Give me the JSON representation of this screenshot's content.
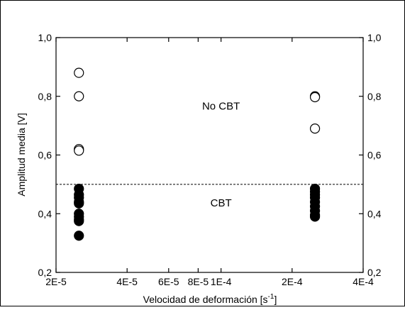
{
  "chart_data": {
    "type": "scatter",
    "xscale": "log",
    "xlim": [
      2e-05,
      0.0004
    ],
    "ylim": [
      0.2,
      1.0
    ],
    "xlabel_main": "Velocidad de deformación [s",
    "xlabel_sup": "-1",
    "xlabel_tail": "]",
    "ylabel": "Amplitud media [V]",
    "x_ticks": [
      {
        "value": 2e-05,
        "label": "2E-5"
      },
      {
        "value": 4e-05,
        "label": "4E-5"
      },
      {
        "value": 6e-05,
        "label": "6E-5"
      },
      {
        "value": 8e-05,
        "label": "8E-5"
      },
      {
        "value": 0.0001,
        "label": "1E-4"
      },
      {
        "value": 0.0002,
        "label": "2E-4"
      },
      {
        "value": 0.0004,
        "label": "4E-4"
      }
    ],
    "y_ticks": [
      {
        "value": 0.2,
        "label": "0,2"
      },
      {
        "value": 0.4,
        "label": "0,4"
      },
      {
        "value": 0.6,
        "label": "0,6"
      },
      {
        "value": 0.8,
        "label": "0,8"
      },
      {
        "value": 1.0,
        "label": "1,0"
      }
    ],
    "threshold": 0.5,
    "annotations": [
      {
        "text": "No CBT",
        "x": 0.0001,
        "y": 0.755
      },
      {
        "text": "CBT",
        "x": 0.0001,
        "y": 0.425
      }
    ],
    "series": [
      {
        "marker": "open-circle",
        "x": [
          2.5e-05,
          2.5e-05,
          2.5e-05,
          2.5e-05,
          0.00025,
          0.00025,
          0.00025
        ],
        "y": [
          0.88,
          0.8,
          0.62,
          0.615,
          0.8,
          0.797,
          0.69
        ]
      },
      {
        "marker": "filled-circle",
        "x": [
          2.5e-05,
          2.5e-05,
          2.5e-05,
          2.5e-05,
          2.5e-05,
          2.5e-05,
          2.5e-05,
          2.5e-05,
          2.5e-05,
          2.5e-05,
          0.00025,
          0.00025,
          0.00025,
          0.00025,
          0.00025,
          0.00025,
          0.00025,
          0.00025,
          0.00025
        ],
        "y": [
          0.485,
          0.465,
          0.455,
          0.44,
          0.435,
          0.4,
          0.39,
          0.38,
          0.375,
          0.325,
          0.485,
          0.475,
          0.465,
          0.455,
          0.44,
          0.425,
          0.41,
          0.395,
          0.39
        ]
      }
    ]
  }
}
